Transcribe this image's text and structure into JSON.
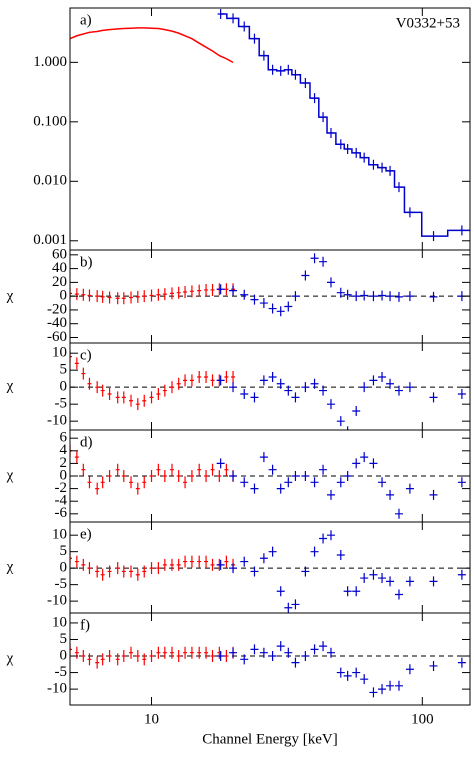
{
  "chart_data": [
    {
      "type": "line",
      "log_y": true,
      "annotation": "a)",
      "source": "V0332+53",
      "xlim": [
        5,
        150
      ],
      "ylim": [
        0.0007,
        8.2
      ],
      "yticks": [
        {
          "value": 1,
          "label": "1.000"
        },
        {
          "value": 0.1,
          "label": "0.100"
        },
        {
          "value": 0.01,
          "label": "0.010"
        },
        {
          "value": 0.001,
          "label": "0.001"
        }
      ],
      "series": [
        {
          "color": "#ff0000",
          "style": "line",
          "x": [
            5.0,
            5.3,
            5.6,
            5.9,
            6.3,
            6.6,
            7.0,
            7.5,
            7.9,
            8.4,
            8.9,
            9.4,
            10.0,
            10.6,
            11.2,
            11.9,
            12.6,
            13.3,
            14.1,
            15.0,
            15.9,
            16.8,
            17.8,
            18.9,
            20.0
          ],
          "values": [
            2.5,
            2.8,
            3.0,
            3.2,
            3.3,
            3.45,
            3.55,
            3.65,
            3.7,
            3.75,
            3.8,
            3.8,
            3.75,
            3.7,
            3.55,
            3.35,
            3.1,
            2.8,
            2.5,
            2.1,
            1.8,
            1.55,
            1.3,
            1.15,
            1.0
          ]
        },
        {
          "color": "#0000cc",
          "style": "step",
          "x": [
            18,
            20,
            22,
            24,
            26,
            28,
            30,
            32,
            34,
            37,
            40,
            43,
            46,
            50,
            53,
            57,
            61,
            66,
            71,
            76,
            82,
            90,
            110,
            140
          ],
          "values": [
            6.5,
            5.5,
            4.0,
            2.5,
            1.3,
            0.75,
            0.72,
            0.75,
            0.62,
            0.45,
            0.25,
            0.12,
            0.065,
            0.042,
            0.035,
            0.03,
            0.025,
            0.019,
            0.017,
            0.015,
            0.008,
            0.003,
            0.0012,
            0.0015
          ]
        }
      ]
    },
    {
      "type": "scatter",
      "annotation": "b)",
      "ylabel": "χ",
      "hline": 0,
      "xlim": [
        5,
        150
      ],
      "ylim": [
        -68,
        67
      ],
      "yticks": [
        60,
        40,
        20,
        0,
        -20,
        -40,
        -60
      ],
      "series": [
        {
          "color": "#ff0000",
          "x": [
            5.0,
            5.3,
            5.6,
            5.9,
            6.3,
            6.6,
            7.0,
            7.5,
            7.9,
            8.4,
            8.9,
            9.4,
            10.0,
            10.6,
            11.2,
            11.9,
            12.6,
            13.3,
            14.1,
            15.0,
            15.9,
            16.8,
            17.8,
            18.9,
            20.0
          ],
          "values": [
            4,
            3,
            2,
            1,
            0,
            -1,
            -2,
            -3,
            -3,
            -2,
            -1,
            0,
            1,
            2,
            3,
            4,
            5,
            6,
            7,
            8,
            9,
            9,
            10,
            10,
            10
          ]
        },
        {
          "color": "#0000cc",
          "x": [
            18,
            20,
            22,
            24,
            26,
            28,
            30,
            32,
            34,
            37,
            40,
            43,
            46,
            50,
            53,
            57,
            61,
            66,
            71,
            76,
            82,
            90,
            110,
            140
          ],
          "values": [
            10,
            8,
            2,
            -5,
            -10,
            -18,
            -22,
            -15,
            0,
            30,
            55,
            50,
            20,
            5,
            2,
            0,
            1,
            0,
            1,
            0,
            -1,
            0,
            -1,
            0
          ]
        }
      ]
    },
    {
      "type": "scatter",
      "annotation": "c)",
      "ylabel": "χ",
      "hline": 0,
      "xlim": [
        5,
        150
      ],
      "ylim": [
        -12.6,
        13
      ],
      "yticks": [
        10,
        5,
        0,
        -5,
        -10
      ],
      "series": [
        {
          "color": "#ff0000",
          "x": [
            5.0,
            5.3,
            5.6,
            5.9,
            6.3,
            6.6,
            7.0,
            7.5,
            7.9,
            8.4,
            8.9,
            9.4,
            10.0,
            10.6,
            11.2,
            11.9,
            12.6,
            13.3,
            14.1,
            15.0,
            15.9,
            16.8,
            17.8,
            18.9,
            20.0
          ],
          "values": [
            9,
            7,
            4,
            1,
            0,
            -1,
            -2,
            -3,
            -3,
            -4,
            -5,
            -4,
            -3,
            -2,
            -1,
            0,
            1,
            2,
            2,
            3,
            3,
            2,
            2,
            3,
            3
          ]
        },
        {
          "color": "#0000cc",
          "x": [
            18,
            20,
            22,
            24,
            26,
            28,
            30,
            32,
            34,
            37,
            40,
            43,
            46,
            50,
            53,
            57,
            61,
            66,
            71,
            76,
            82,
            90,
            110,
            140
          ],
          "values": [
            2,
            0,
            -2,
            -3,
            2,
            3,
            1,
            -1,
            -3,
            0,
            1,
            -1,
            -5,
            -10,
            -13,
            -7,
            0,
            2,
            3,
            1,
            -1,
            0,
            -3,
            -2
          ]
        }
      ]
    },
    {
      "type": "scatter",
      "annotation": "d)",
      "ylabel": "χ",
      "hline": 0,
      "xlim": [
        5,
        150
      ],
      "ylim": [
        -7.3,
        7.3
      ],
      "yticks": [
        6,
        4,
        2,
        0,
        -2,
        -4,
        -6
      ],
      "series": [
        {
          "color": "#ff0000",
          "x": [
            5.0,
            5.3,
            5.6,
            5.9,
            6.3,
            6.6,
            7.0,
            7.5,
            7.9,
            8.4,
            8.9,
            9.4,
            10.0,
            10.6,
            11.2,
            11.9,
            12.6,
            13.3,
            14.1,
            15.0,
            15.9,
            16.8,
            17.8,
            18.9,
            20.0
          ],
          "values": [
            4,
            3,
            1,
            -1,
            -2,
            -1,
            0,
            1,
            0,
            -1,
            -2,
            -1,
            0,
            1,
            0,
            1,
            0,
            -1,
            0,
            1,
            0,
            1,
            0,
            1,
            0
          ]
        },
        {
          "color": "#0000cc",
          "x": [
            18,
            20,
            22,
            24,
            26,
            28,
            30,
            32,
            34,
            37,
            40,
            43,
            46,
            50,
            53,
            57,
            61,
            66,
            71,
            76,
            82,
            90,
            110,
            140
          ],
          "values": [
            2,
            0,
            -1,
            -2,
            3,
            1,
            -2,
            -1,
            0,
            0,
            -1,
            1,
            -3,
            -1,
            0,
            2,
            3,
            2,
            -1,
            -3,
            -6,
            -2,
            -3,
            -1
          ]
        }
      ]
    },
    {
      "type": "scatter",
      "annotation": "e)",
      "ylabel": "χ",
      "hline": 0,
      "xlim": [
        5,
        150
      ],
      "ylim": [
        -13.6,
        14
      ],
      "yticks": [
        10,
        5,
        0,
        -5,
        -10
      ],
      "series": [
        {
          "color": "#ff0000",
          "x": [
            5.0,
            5.3,
            5.6,
            5.9,
            6.3,
            6.6,
            7.0,
            7.5,
            7.9,
            8.4,
            8.9,
            9.4,
            10.0,
            10.6,
            11.2,
            11.9,
            12.6,
            13.3,
            14.1,
            15.0,
            15.9,
            16.8,
            17.8,
            18.9,
            20.0
          ],
          "values": [
            3,
            2,
            1,
            0,
            -1,
            -2,
            -1,
            0,
            -1,
            -1,
            -2,
            -1,
            0,
            0,
            1,
            1,
            1,
            2,
            2,
            2,
            2,
            1,
            1,
            2,
            1
          ]
        },
        {
          "color": "#0000cc",
          "x": [
            18,
            20,
            22,
            24,
            26,
            28,
            30,
            32,
            34,
            37,
            40,
            43,
            46,
            50,
            53,
            57,
            61,
            66,
            71,
            76,
            82,
            90,
            110,
            140
          ],
          "values": [
            1,
            0,
            2,
            -1,
            3,
            5,
            -7,
            -12,
            -11,
            -1,
            5,
            9,
            10,
            4,
            -7,
            -7,
            -3,
            -2,
            -3,
            -4,
            -8,
            -4,
            -4,
            -2
          ]
        }
      ]
    },
    {
      "type": "scatter",
      "annotation": "f)",
      "ylabel": "χ",
      "hline": 0,
      "xlabel": "Channel Energy [keV]",
      "xlim": [
        5,
        150
      ],
      "ylim": [
        -14.8,
        13
      ],
      "yticks": [
        10,
        5,
        0,
        -5,
        -10
      ],
      "xticks": [
        10,
        100
      ],
      "series": [
        {
          "color": "#ff0000",
          "x": [
            5.0,
            5.3,
            5.6,
            5.9,
            6.3,
            6.6,
            7.0,
            7.5,
            7.9,
            8.4,
            8.9,
            9.4,
            10.0,
            10.6,
            11.2,
            11.9,
            12.6,
            13.3,
            14.1,
            15.0,
            15.9,
            16.8,
            17.8,
            18.9,
            20.0
          ],
          "values": [
            2,
            1,
            0,
            -1,
            -2,
            -1,
            0,
            -1,
            0,
            1,
            0,
            -1,
            0,
            1,
            1,
            1,
            0,
            1,
            1,
            1,
            1,
            0,
            1,
            0,
            1
          ]
        },
        {
          "color": "#0000cc",
          "x": [
            18,
            20,
            22,
            24,
            26,
            28,
            30,
            32,
            34,
            37,
            40,
            43,
            46,
            50,
            53,
            57,
            61,
            66,
            71,
            76,
            82,
            90,
            110,
            140
          ],
          "values": [
            0,
            1,
            -1,
            2,
            1,
            0,
            3,
            1,
            -2,
            0,
            2,
            3,
            1,
            -5,
            -6,
            -5,
            -7,
            -11,
            -10,
            -9,
            -9,
            -4,
            -3,
            -2
          ]
        }
      ]
    }
  ]
}
